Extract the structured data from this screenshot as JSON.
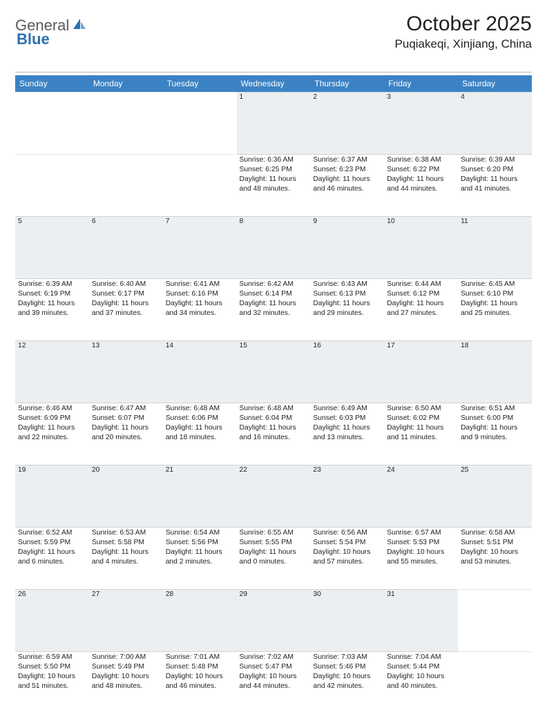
{
  "brand": {
    "part1": "General",
    "part2": "Blue"
  },
  "title": "October 2025",
  "location": "Puqiakeqi, Xinjiang, China",
  "colors": {
    "header_bg": "#3b82c4",
    "header_fg": "#ffffff",
    "daynum_bg": "#eceff1",
    "brand_gray": "#5a5a5a",
    "brand_blue": "#2f6fae",
    "page_bg": "#ffffff"
  },
  "weekdays": [
    "Sunday",
    "Monday",
    "Tuesday",
    "Wednesday",
    "Thursday",
    "Friday",
    "Saturday"
  ],
  "weeks": [
    {
      "nums": [
        "",
        "",
        "",
        "1",
        "2",
        "3",
        "4"
      ],
      "cells": [
        null,
        null,
        null,
        {
          "sunrise": "6:36 AM",
          "sunset": "6:25 PM",
          "daylight": "11 hours and 48 minutes."
        },
        {
          "sunrise": "6:37 AM",
          "sunset": "6:23 PM",
          "daylight": "11 hours and 46 minutes."
        },
        {
          "sunrise": "6:38 AM",
          "sunset": "6:22 PM",
          "daylight": "11 hours and 44 minutes."
        },
        {
          "sunrise": "6:39 AM",
          "sunset": "6:20 PM",
          "daylight": "11 hours and 41 minutes."
        }
      ]
    },
    {
      "nums": [
        "5",
        "6",
        "7",
        "8",
        "9",
        "10",
        "11"
      ],
      "cells": [
        {
          "sunrise": "6:39 AM",
          "sunset": "6:19 PM",
          "daylight": "11 hours and 39 minutes."
        },
        {
          "sunrise": "6:40 AM",
          "sunset": "6:17 PM",
          "daylight": "11 hours and 37 minutes."
        },
        {
          "sunrise": "6:41 AM",
          "sunset": "6:16 PM",
          "daylight": "11 hours and 34 minutes."
        },
        {
          "sunrise": "6:42 AM",
          "sunset": "6:14 PM",
          "daylight": "11 hours and 32 minutes."
        },
        {
          "sunrise": "6:43 AM",
          "sunset": "6:13 PM",
          "daylight": "11 hours and 29 minutes."
        },
        {
          "sunrise": "6:44 AM",
          "sunset": "6:12 PM",
          "daylight": "11 hours and 27 minutes."
        },
        {
          "sunrise": "6:45 AM",
          "sunset": "6:10 PM",
          "daylight": "11 hours and 25 minutes."
        }
      ]
    },
    {
      "nums": [
        "12",
        "13",
        "14",
        "15",
        "16",
        "17",
        "18"
      ],
      "cells": [
        {
          "sunrise": "6:46 AM",
          "sunset": "6:09 PM",
          "daylight": "11 hours and 22 minutes."
        },
        {
          "sunrise": "6:47 AM",
          "sunset": "6:07 PM",
          "daylight": "11 hours and 20 minutes."
        },
        {
          "sunrise": "6:48 AM",
          "sunset": "6:06 PM",
          "daylight": "11 hours and 18 minutes."
        },
        {
          "sunrise": "6:48 AM",
          "sunset": "6:04 PM",
          "daylight": "11 hours and 16 minutes."
        },
        {
          "sunrise": "6:49 AM",
          "sunset": "6:03 PM",
          "daylight": "11 hours and 13 minutes."
        },
        {
          "sunrise": "6:50 AM",
          "sunset": "6:02 PM",
          "daylight": "11 hours and 11 minutes."
        },
        {
          "sunrise": "6:51 AM",
          "sunset": "6:00 PM",
          "daylight": "11 hours and 9 minutes."
        }
      ]
    },
    {
      "nums": [
        "19",
        "20",
        "21",
        "22",
        "23",
        "24",
        "25"
      ],
      "cells": [
        {
          "sunrise": "6:52 AM",
          "sunset": "5:59 PM",
          "daylight": "11 hours and 6 minutes."
        },
        {
          "sunrise": "6:53 AM",
          "sunset": "5:58 PM",
          "daylight": "11 hours and 4 minutes."
        },
        {
          "sunrise": "6:54 AM",
          "sunset": "5:56 PM",
          "daylight": "11 hours and 2 minutes."
        },
        {
          "sunrise": "6:55 AM",
          "sunset": "5:55 PM",
          "daylight": "11 hours and 0 minutes."
        },
        {
          "sunrise": "6:56 AM",
          "sunset": "5:54 PM",
          "daylight": "10 hours and 57 minutes."
        },
        {
          "sunrise": "6:57 AM",
          "sunset": "5:53 PM",
          "daylight": "10 hours and 55 minutes."
        },
        {
          "sunrise": "6:58 AM",
          "sunset": "5:51 PM",
          "daylight": "10 hours and 53 minutes."
        }
      ]
    },
    {
      "nums": [
        "26",
        "27",
        "28",
        "29",
        "30",
        "31",
        ""
      ],
      "cells": [
        {
          "sunrise": "6:59 AM",
          "sunset": "5:50 PM",
          "daylight": "10 hours and 51 minutes."
        },
        {
          "sunrise": "7:00 AM",
          "sunset": "5:49 PM",
          "daylight": "10 hours and 48 minutes."
        },
        {
          "sunrise": "7:01 AM",
          "sunset": "5:48 PM",
          "daylight": "10 hours and 46 minutes."
        },
        {
          "sunrise": "7:02 AM",
          "sunset": "5:47 PM",
          "daylight": "10 hours and 44 minutes."
        },
        {
          "sunrise": "7:03 AM",
          "sunset": "5:46 PM",
          "daylight": "10 hours and 42 minutes."
        },
        {
          "sunrise": "7:04 AM",
          "sunset": "5:44 PM",
          "daylight": "10 hours and 40 minutes."
        },
        null
      ]
    }
  ],
  "labels": {
    "sunrise": "Sunrise:",
    "sunset": "Sunset:",
    "daylight": "Daylight:"
  }
}
